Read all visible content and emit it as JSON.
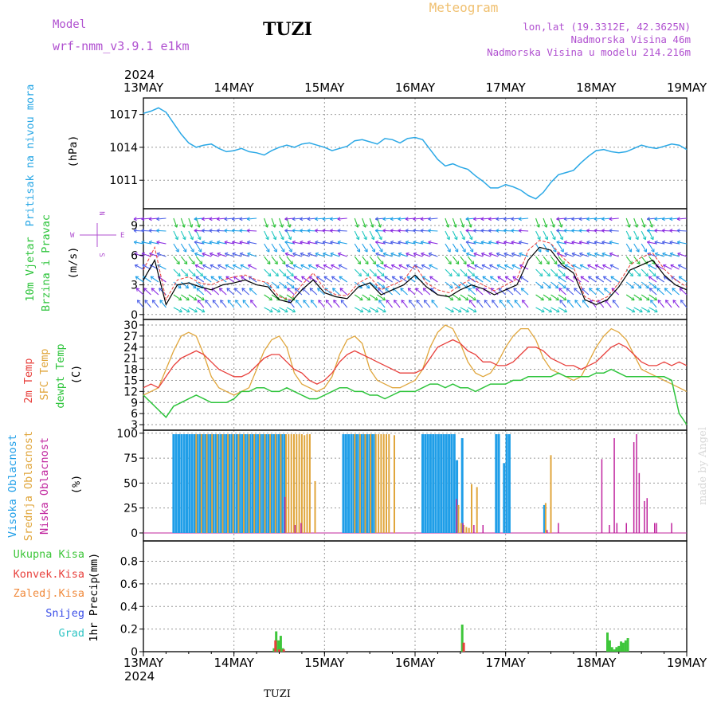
{
  "header": {
    "model_label": "Model",
    "model_name": "wrf-nmm_v3.9.1 e1km",
    "station": "TUZI",
    "title": "Meteogram",
    "coords": "lon,lat (19.3312E, 42.3625N)",
    "elevation": "Nadmorska Visina 46m",
    "model_elevation": "Nadmorska Visina u modelu 214.216m"
  },
  "footer": {
    "station": "TUZI",
    "credit": "made by Angel"
  },
  "time_axis": {
    "year": "2024",
    "labels": [
      "13MAY",
      "14MAY",
      "15MAY",
      "16MAY",
      "17MAY",
      "18MAY",
      "19MAY"
    ],
    "hours_total": 144
  },
  "colors": {
    "pressure": "#2aa8e6",
    "high_cloud": "#1f9ee8",
    "mid_cloud": "#e0a63c",
    "low_cloud": "#c0249e",
    "t2m": "#e8403c",
    "sfc": "#e0a63c",
    "dew": "#2ec43c",
    "total_precip": "#3ec63a",
    "conv_precip": "#e8403c",
    "freezing_precip": "#f08a3c",
    "snow": "#3a4ee8",
    "graupel": "#2ec4c4",
    "wind_line": "#000000",
    "gust": "#e8403c"
  },
  "chart_data": [
    {
      "type": "line",
      "panel": "pressure",
      "ylabel_rotated": "Pritisak na nivou mora",
      "unit": "(hPa)",
      "yticks": [
        1011,
        1014,
        1017
      ],
      "ylim": [
        1008.4,
        1018.5
      ],
      "x_hours": [
        0,
        2,
        4,
        6,
        8,
        10,
        12,
        14,
        16,
        18,
        20,
        22,
        24,
        26,
        28,
        30,
        32,
        34,
        36,
        38,
        40,
        42,
        44,
        46,
        48,
        50,
        52,
        54,
        56,
        58,
        60,
        62,
        64,
        66,
        68,
        70,
        72,
        74,
        76,
        78,
        80,
        82,
        84,
        86,
        88,
        90,
        92,
        94,
        96,
        98,
        100,
        102,
        104,
        106,
        108,
        110,
        112,
        114,
        116,
        118,
        120,
        122,
        124,
        126,
        128,
        130,
        132,
        134,
        136,
        138,
        140,
        142,
        144
      ],
      "series": [
        {
          "values": [
            1017.1,
            1017.3,
            1017.6,
            1017.2,
            1016.2,
            1015.2,
            1014.4,
            1014.0,
            1014.2,
            1014.3,
            1013.9,
            1013.6,
            1013.7,
            1013.9,
            1013.6,
            1013.5,
            1013.3,
            1013.7,
            1014.0,
            1014.2,
            1014.0,
            1014.3,
            1014.4,
            1014.2,
            1014.0,
            1013.7,
            1013.9,
            1014.1,
            1014.6,
            1014.7,
            1014.5,
            1014.3,
            1014.8,
            1014.7,
            1014.4,
            1014.8,
            1014.9,
            1014.7,
            1013.8,
            1012.9,
            1012.3,
            1012.5,
            1012.2,
            1012.0,
            1011.4,
            1010.9,
            1010.3,
            1010.3,
            1010.6,
            1010.4,
            1010.1,
            1009.6,
            1009.3,
            1009.9,
            1010.8,
            1011.5,
            1011.7,
            1011.9,
            1012.6,
            1013.2,
            1013.7,
            1013.8,
            1013.6,
            1013.5,
            1013.6,
            1013.9,
            1014.2,
            1014.0,
            1013.9,
            1014.1,
            1014.3,
            1014.2,
            1013.8
          ]
        }
      ]
    },
    {
      "type": "line",
      "panel": "wind",
      "ylabel_rotated": [
        "10m Vjetar",
        "Brzina i Pravac"
      ],
      "unit": "(m/s)",
      "compass": {
        "north": "N",
        "south": "S",
        "west": "W",
        "east": "E"
      },
      "yticks": [
        0,
        3,
        6,
        9
      ],
      "ylim": [
        -0.5,
        10.7
      ],
      "x_hours": [
        0,
        3,
        6,
        9,
        12,
        15,
        18,
        21,
        24,
        27,
        30,
        33,
        36,
        39,
        42,
        45,
        48,
        51,
        54,
        57,
        60,
        63,
        66,
        69,
        72,
        75,
        78,
        81,
        84,
        87,
        90,
        93,
        96,
        99,
        102,
        105,
        108,
        111,
        114,
        117,
        120,
        123,
        126,
        129,
        132,
        135,
        138,
        141,
        144
      ],
      "series": [
        {
          "name": "speed",
          "values": [
            3.5,
            5.5,
            1.0,
            3.0,
            3.2,
            2.8,
            2.5,
            3.0,
            3.2,
            3.5,
            3.0,
            2.8,
            1.5,
            1.2,
            2.5,
            3.5,
            2.2,
            1.8,
            1.6,
            2.8,
            3.2,
            2.0,
            2.5,
            3.0,
            4.0,
            2.8,
            2.0,
            1.8,
            2.5,
            3.0,
            2.6,
            2.0,
            2.5,
            3.0,
            5.5,
            6.8,
            6.5,
            5.0,
            4.2,
            1.5,
            1.0,
            1.5,
            2.8,
            4.5,
            5.0,
            5.5,
            4.0,
            3.0,
            2.5
          ]
        },
        {
          "name": "gust",
          "values": [
            4.5,
            6.8,
            1.5,
            3.5,
            3.8,
            3.2,
            3.0,
            3.5,
            3.8,
            4.0,
            3.5,
            3.2,
            1.8,
            1.5,
            3.0,
            4.2,
            2.6,
            2.0,
            1.9,
            3.2,
            3.8,
            2.5,
            3.0,
            3.5,
            5.0,
            3.2,
            2.5,
            2.2,
            3.0,
            3.6,
            3.0,
            2.4,
            3.0,
            3.6,
            6.5,
            7.5,
            7.2,
            5.8,
            4.8,
            1.8,
            1.3,
            1.8,
            3.2,
            5.0,
            5.8,
            6.2,
            4.6,
            3.5,
            2.8
          ]
        }
      ]
    },
    {
      "type": "line",
      "panel": "temperature",
      "ylabel_rotated": [
        "2m Temp",
        "SFC Temp",
        "dewpt Temp"
      ],
      "unit": "(C)",
      "yticks": [
        3,
        6,
        9,
        12,
        15,
        18,
        21,
        24,
        27,
        30
      ],
      "ylim": [
        1.5,
        31.5
      ],
      "x_hours": [
        0,
        2,
        4,
        6,
        8,
        10,
        12,
        14,
        16,
        18,
        20,
        22,
        24,
        26,
        28,
        30,
        32,
        34,
        36,
        38,
        40,
        42,
        44,
        46,
        48,
        50,
        52,
        54,
        56,
        58,
        60,
        62,
        64,
        66,
        68,
        70,
        72,
        74,
        76,
        78,
        80,
        82,
        84,
        86,
        88,
        90,
        92,
        94,
        96,
        98,
        100,
        102,
        104,
        106,
        108,
        110,
        112,
        114,
        116,
        118,
        120,
        122,
        124,
        126,
        128,
        130,
        132,
        134,
        136,
        138,
        140,
        142,
        144
      ],
      "series": [
        {
          "name": "2m Temp",
          "values": [
            13,
            14,
            13,
            16,
            19,
            21,
            22,
            23,
            22,
            20,
            18,
            17,
            16,
            16,
            17,
            19,
            21,
            22,
            22,
            20,
            18,
            17,
            15,
            14,
            15,
            17,
            20,
            22,
            23,
            22,
            21,
            20,
            19,
            18,
            17,
            17,
            17,
            18,
            21,
            24,
            25,
            26,
            25,
            23,
            22,
            20,
            20,
            19,
            19,
            20,
            22,
            24,
            24,
            23,
            21,
            20,
            19,
            19,
            18,
            19,
            20,
            22,
            24,
            25,
            24,
            22,
            20,
            19,
            19,
            20,
            19,
            20,
            19
          ]
        },
        {
          "name": "SFC Temp",
          "values": [
            11,
            12,
            13,
            18,
            23,
            27,
            28,
            27,
            22,
            16,
            13,
            12,
            11,
            12,
            13,
            18,
            23,
            26,
            27,
            24,
            17,
            14,
            13,
            12,
            13,
            16,
            22,
            26,
            27,
            25,
            18,
            15,
            14,
            13,
            13,
            14,
            15,
            18,
            24,
            28,
            30,
            29,
            25,
            20,
            17,
            16,
            17,
            20,
            24,
            27,
            29,
            29,
            26,
            21,
            18,
            17,
            16,
            15,
            16,
            20,
            24,
            27,
            29,
            28,
            26,
            22,
            18,
            17,
            16,
            15,
            14,
            13,
            12
          ]
        },
        {
          "name": "dewpt Temp",
          "values": [
            11,
            9,
            7,
            5,
            8,
            9,
            10,
            11,
            10,
            9,
            9,
            9,
            10,
            12,
            12,
            13,
            13,
            12,
            12,
            13,
            12,
            11,
            10,
            10,
            11,
            12,
            13,
            13,
            12,
            12,
            11,
            11,
            10,
            11,
            12,
            12,
            12,
            13,
            14,
            14,
            13,
            14,
            13,
            13,
            12,
            13,
            14,
            14,
            14,
            15,
            15,
            16,
            16,
            16,
            16,
            17,
            16,
            16,
            16,
            16,
            17,
            17,
            18,
            17,
            16,
            16,
            16,
            16,
            16,
            16,
            15,
            6,
            3
          ]
        }
      ]
    },
    {
      "type": "bar",
      "panel": "clouds",
      "ylabel_rotated": [
        "Visoka Oblacnost",
        "Srednja Oblacnost",
        "Niska Oblacnost"
      ],
      "unit": "(%)",
      "yticks": [
        0,
        25,
        50,
        75,
        100
      ],
      "ylim": [
        -8,
        103
      ],
      "series": [
        {
          "name": "Visoka Oblacnost",
          "hours": [
            8,
            8.7,
            9.4,
            10.1,
            10.8,
            11.5,
            12.2,
            12.9,
            13.6,
            14.3,
            15,
            15.7,
            16.4,
            17.1,
            17.8,
            18.5,
            19.2,
            19.9,
            20.6,
            21.3,
            22,
            22.7,
            23.4,
            24.1,
            24.8,
            25.5,
            26.2,
            26.9,
            27.6,
            28.3,
            29,
            29.7,
            30.4,
            31.1,
            31.8,
            32.5,
            33.2,
            33.9,
            34.6,
            35.3,
            36,
            36.7,
            37.4,
            53,
            53.7,
            54.4,
            55.1,
            55.8,
            56.5,
            57.2,
            57.9,
            58.6,
            59.3,
            60,
            60.7,
            61.4,
            74,
            74.7,
            75.4,
            76.1,
            76.8,
            77.5,
            78.2,
            78.9,
            79.6,
            80.3,
            81,
            81.7,
            82.4,
            83.1,
            84.5,
            93.5,
            94.2,
            95.6,
            96.3,
            97,
            106.3
          ],
          "values": [
            99,
            99,
            99,
            99,
            99,
            99,
            99,
            99,
            99,
            99,
            99,
            99,
            99,
            99,
            99,
            99,
            99,
            99,
            99,
            99,
            99,
            99,
            99,
            99,
            99,
            99,
            99,
            99,
            99,
            99,
            99,
            99,
            99,
            99,
            99,
            99,
            99,
            99,
            99,
            99,
            99,
            99,
            99,
            99,
            99,
            99,
            99,
            99,
            99,
            99,
            99,
            99,
            99,
            99,
            99,
            99,
            99,
            99,
            99,
            99,
            99,
            99,
            99,
            99,
            99,
            99,
            99,
            99,
            99,
            73,
            95,
            99,
            99,
            70,
            99,
            99,
            28
          ]
        },
        {
          "name": "Srednja Oblacnost",
          "hours": [
            14,
            15.4,
            16.8,
            18.2,
            19.6,
            21,
            22.4,
            23.8,
            25.2,
            26.6,
            28,
            29.4,
            30.8,
            32.2,
            33.6,
            35,
            36.4,
            37.8,
            38.5,
            39.2,
            39.9,
            40.6,
            41.3,
            42,
            42.7,
            43.4,
            44.1,
            45.5,
            56,
            57.4,
            58.8,
            60.2,
            61.6,
            62.3,
            63,
            63.7,
            64.4,
            65.1,
            66.5,
            83.5,
            84.2,
            84.9,
            85.6,
            86.3,
            87,
            88.4,
            106.6,
            108
          ],
          "values": [
            99,
            99,
            99,
            99,
            99,
            99,
            99,
            99,
            99,
            99,
            99,
            99,
            99,
            99,
            99,
            99,
            99,
            99,
            99,
            99,
            99,
            99,
            99,
            99,
            98,
            99,
            99,
            52,
            99,
            99,
            99,
            99,
            99,
            99,
            99,
            99,
            99,
            99,
            98,
            28,
            10,
            8,
            6,
            5,
            49,
            46,
            30,
            78
          ]
        },
        {
          "name": "Niska Oblacnost",
          "hours": [
            37.5,
            40.2,
            41.8,
            83,
            84.7,
            87.6,
            90,
            107,
            110,
            121.5,
            123.5,
            124.8,
            125.5,
            128,
            130,
            130.7,
            131.4,
            132.8,
            133.5,
            135.5,
            136,
            140
          ],
          "values": [
            36,
            8,
            10,
            34,
            10,
            8,
            8,
            3,
            10,
            74,
            8,
            95,
            10,
            10,
            91,
            99,
            60,
            32,
            35,
            10,
            10,
            10
          ]
        }
      ]
    },
    {
      "type": "bar",
      "panel": "precipitation",
      "legend": [
        "Ukupna Kisa",
        "Konvek.Kisa",
        "Zaledj.Kisa",
        "Snijeg",
        "Grad"
      ],
      "ylabel_rotated": "1hr Precip",
      "unit": "(mm)",
      "yticks": [
        0,
        0.2,
        0.4,
        0.6,
        0.8
      ],
      "ylim": [
        0,
        0.98
      ],
      "series": [
        {
          "name": "Ukupna Kisa",
          "hours": [
            34.6,
            35.2,
            35.8,
            36.4,
            37,
            84.5,
            123,
            123.6,
            124.2,
            124.8,
            125.4,
            126,
            126.6,
            127.2,
            127.8,
            128.4
          ],
          "values": [
            0.03,
            0.18,
            0.1,
            0.14,
            0.03,
            0.24,
            0.17,
            0.1,
            0.04,
            0.02,
            0.04,
            0.05,
            0.09,
            0.08,
            0.1,
            0.12
          ]
        },
        {
          "name": "Konvek.Kisa",
          "hours": [
            35,
            36,
            37.2,
            84.9
          ],
          "values": [
            0.1,
            0.02,
            0.02,
            0.08
          ]
        }
      ]
    }
  ]
}
